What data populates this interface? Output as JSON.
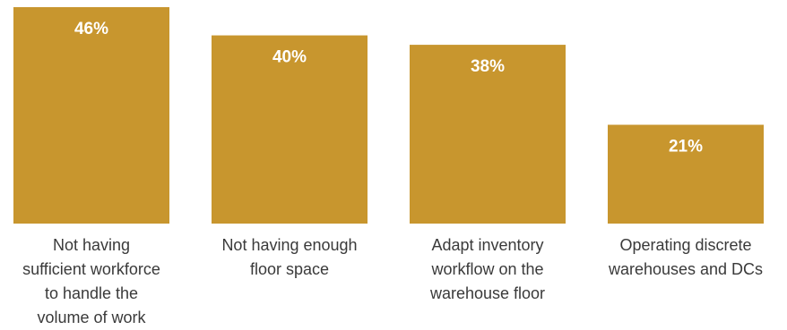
{
  "chart_data": {
    "type": "bar",
    "categories": [
      "Not having sufficient workforce to handle the volume of work",
      "Not having enough floor space",
      "Adapt inventory workflow on the warehouse floor",
      "Operating discrete warehouses and DCs"
    ],
    "category_label_lines": [
      [
        "Not having",
        "sufficient workforce",
        "to handle the",
        "volume of work"
      ],
      [
        "Not having enough",
        "floor space"
      ],
      [
        "Adapt inventory",
        "workflow on the",
        "warehouse floor"
      ],
      [
        "Operating discrete",
        "warehouses and DCs"
      ]
    ],
    "values": [
      46,
      40,
      38,
      21
    ],
    "value_labels": [
      "46%",
      "40%",
      "38%",
      "21%"
    ],
    "unit": "%",
    "title": "",
    "xlabel": "",
    "ylabel": "",
    "ylim": [
      0,
      46
    ],
    "grid": false,
    "legend": "none",
    "colors": {
      "bar": "#C8962E",
      "value_text": "#ffffff",
      "label_text": "#3a3a3a"
    }
  }
}
